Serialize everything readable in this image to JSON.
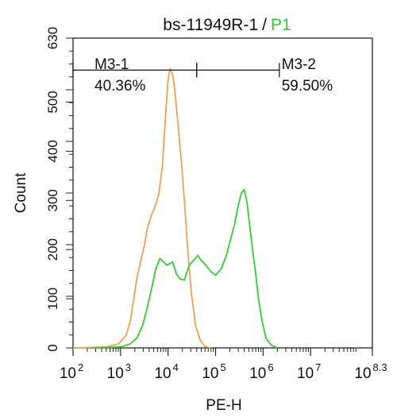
{
  "chart_data": {
    "type": "histogram",
    "title": "bs-11949R-1",
    "title_separator": "/",
    "title_gate": "P1",
    "title_gate_color": "#33cc33",
    "xlabel": "PE-H",
    "ylabel": "Count",
    "x_scale": "log10",
    "xlim": [
      100,
      199526231
    ],
    "ylim": [
      0,
      630
    ],
    "x_ticks": [
      {
        "value": 100,
        "base": "10",
        "exp": "2"
      },
      {
        "value": 1000,
        "base": "10",
        "exp": "3"
      },
      {
        "value": 10000,
        "base": "10",
        "exp": "4"
      },
      {
        "value": 100000,
        "base": "10",
        "exp": "5"
      },
      {
        "value": 1000000,
        "base": "10",
        "exp": "6"
      },
      {
        "value": 10000000,
        "base": "10",
        "exp": "7"
      },
      {
        "value": 199526231,
        "base": "10",
        "exp": "8.3"
      }
    ],
    "y_ticks": [
      0,
      100,
      200,
      300,
      400,
      500,
      630
    ],
    "gates": [
      {
        "label": "M3-1",
        "percent": "40.36%",
        "x_start": 100,
        "x_end": 40000,
        "y": 565
      },
      {
        "label": "M3-2",
        "percent": "59.50%",
        "x_start": 40000,
        "x_end": 2200000,
        "y": 565
      }
    ],
    "series": [
      {
        "color": "#f0a050",
        "points": [
          [
            100,
            0
          ],
          [
            500,
            2
          ],
          [
            900,
            8
          ],
          [
            1300,
            25
          ],
          [
            1600,
            55
          ],
          [
            1900,
            100
          ],
          [
            2200,
            140
          ],
          [
            2700,
            180
          ],
          [
            3200,
            210
          ],
          [
            3600,
            240
          ],
          [
            4300,
            265
          ],
          [
            5200,
            285
          ],
          [
            6300,
            310
          ],
          [
            7600,
            370
          ],
          [
            8800,
            470
          ],
          [
            10000,
            545
          ],
          [
            11000,
            568
          ],
          [
            12500,
            555
          ],
          [
            14000,
            520
          ],
          [
            16000,
            460
          ],
          [
            19000,
            380
          ],
          [
            22000,
            300
          ],
          [
            26000,
            200
          ],
          [
            31000,
            110
          ],
          [
            38000,
            45
          ],
          [
            48000,
            15
          ],
          [
            60000,
            3
          ],
          [
            80000,
            0
          ]
        ]
      },
      {
        "color": "#33cc33",
        "points": [
          [
            250,
            0
          ],
          [
            1000,
            2
          ],
          [
            1600,
            8
          ],
          [
            2200,
            20
          ],
          [
            2900,
            45
          ],
          [
            3600,
            80
          ],
          [
            4500,
            120
          ],
          [
            5500,
            160
          ],
          [
            6700,
            182
          ],
          [
            8000,
            175
          ],
          [
            9500,
            168
          ],
          [
            11000,
            172
          ],
          [
            12500,
            175
          ],
          [
            15000,
            150
          ],
          [
            18000,
            140
          ],
          [
            22000,
            138
          ],
          [
            26000,
            160
          ],
          [
            30000,
            172
          ],
          [
            36000,
            180
          ],
          [
            42000,
            188
          ],
          [
            50000,
            178
          ],
          [
            63000,
            168
          ],
          [
            80000,
            155
          ],
          [
            100000,
            148
          ],
          [
            130000,
            160
          ],
          [
            165000,
            185
          ],
          [
            200000,
            215
          ],
          [
            250000,
            250
          ],
          [
            300000,
            290
          ],
          [
            350000,
            315
          ],
          [
            400000,
            322
          ],
          [
            460000,
            295
          ],
          [
            520000,
            250
          ],
          [
            600000,
            200
          ],
          [
            700000,
            150
          ],
          [
            800000,
            100
          ],
          [
            950000,
            55
          ],
          [
            1150000,
            20
          ],
          [
            1500000,
            5
          ],
          [
            2000000,
            0
          ]
        ]
      }
    ]
  }
}
